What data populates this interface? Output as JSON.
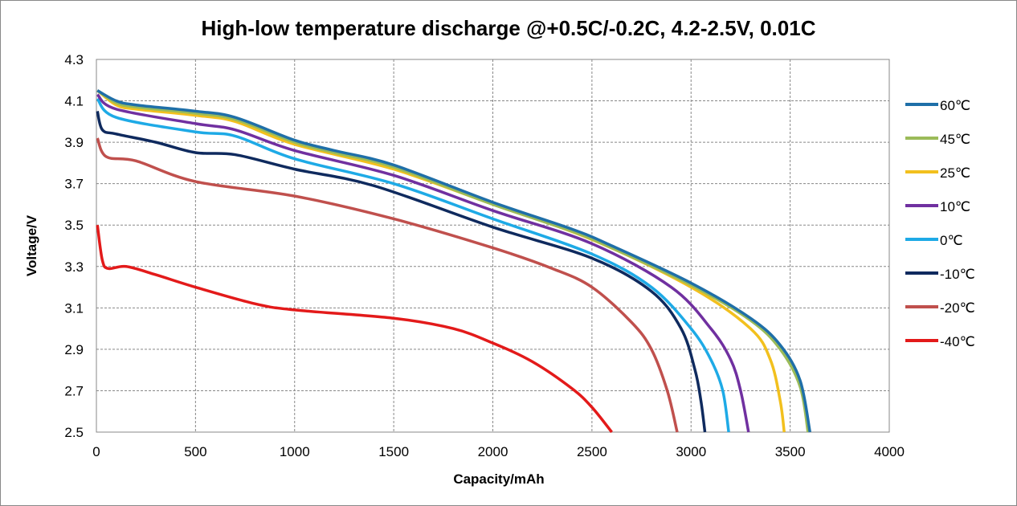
{
  "chart_data": {
    "type": "line",
    "title": "High-low temperature discharge @+0.5C/-0.2C, 4.2-2.5V, 0.01C",
    "xlabel": "Capacity/mAh",
    "ylabel": "Voltage/V",
    "xlim": [
      0,
      4000
    ],
    "ylim": [
      2.5,
      4.3
    ],
    "xticks": [
      "0",
      "500",
      "1000",
      "1500",
      "2000",
      "2500",
      "3000",
      "3500",
      "4000"
    ],
    "yticks": [
      "2.5",
      "2.7",
      "2.9",
      "3.1",
      "3.3",
      "3.5",
      "3.7",
      "3.9",
      "4.1",
      "4.3"
    ],
    "grid": true,
    "legend": "right",
    "series": [
      {
        "name": "60℃",
        "color": "#1f6fa8",
        "points": [
          [
            5,
            4.15
          ],
          [
            100,
            4.1
          ],
          [
            200,
            4.08
          ],
          [
            500,
            4.05
          ],
          [
            700,
            4.02
          ],
          [
            1000,
            3.91
          ],
          [
            1200,
            3.86
          ],
          [
            1500,
            3.79
          ],
          [
            2000,
            3.61
          ],
          [
            2400,
            3.48
          ],
          [
            2600,
            3.4
          ],
          [
            3000,
            3.22
          ],
          [
            3300,
            3.05
          ],
          [
            3450,
            2.92
          ],
          [
            3550,
            2.75
          ],
          [
            3600,
            2.5
          ]
        ]
      },
      {
        "name": "45℃",
        "color": "#9bbb59",
        "points": [
          [
            5,
            4.15
          ],
          [
            100,
            4.09
          ],
          [
            200,
            4.07
          ],
          [
            500,
            4.04
          ],
          [
            700,
            4.01
          ],
          [
            1000,
            3.9
          ],
          [
            1200,
            3.85
          ],
          [
            1500,
            3.78
          ],
          [
            2000,
            3.6
          ],
          [
            2400,
            3.47
          ],
          [
            2600,
            3.39
          ],
          [
            3000,
            3.21
          ],
          [
            3300,
            3.04
          ],
          [
            3450,
            2.9
          ],
          [
            3550,
            2.72
          ],
          [
            3590,
            2.5
          ]
        ]
      },
      {
        "name": "25℃",
        "color": "#f2c01e",
        "points": [
          [
            5,
            4.15
          ],
          [
            100,
            4.08
          ],
          [
            200,
            4.06
          ],
          [
            500,
            4.03
          ],
          [
            700,
            4.0
          ],
          [
            1000,
            3.89
          ],
          [
            1500,
            3.77
          ],
          [
            2000,
            3.6
          ],
          [
            2500,
            3.43
          ],
          [
            3000,
            3.2
          ],
          [
            3300,
            3.0
          ],
          [
            3400,
            2.85
          ],
          [
            3450,
            2.65
          ],
          [
            3470,
            2.5
          ]
        ]
      },
      {
        "name": "10℃",
        "color": "#7030a0",
        "points": [
          [
            5,
            4.13
          ],
          [
            100,
            4.06
          ],
          [
            500,
            3.99
          ],
          [
            700,
            3.96
          ],
          [
            1000,
            3.86
          ],
          [
            1500,
            3.74
          ],
          [
            2000,
            3.57
          ],
          [
            2500,
            3.41
          ],
          [
            2900,
            3.2
          ],
          [
            3100,
            3.0
          ],
          [
            3200,
            2.85
          ],
          [
            3250,
            2.7
          ],
          [
            3290,
            2.5
          ]
        ]
      },
      {
        "name": "0℃",
        "color": "#1eaae6",
        "points": [
          [
            5,
            4.11
          ],
          [
            100,
            4.02
          ],
          [
            500,
            3.95
          ],
          [
            700,
            3.93
          ],
          [
            1000,
            3.82
          ],
          [
            1500,
            3.7
          ],
          [
            2000,
            3.53
          ],
          [
            2500,
            3.36
          ],
          [
            2800,
            3.2
          ],
          [
            3000,
            3.0
          ],
          [
            3100,
            2.85
          ],
          [
            3160,
            2.7
          ],
          [
            3190,
            2.5
          ]
        ]
      },
      {
        "name": "-10℃",
        "color": "#0f2a5e",
        "points": [
          [
            5,
            4.05
          ],
          [
            30,
            3.96
          ],
          [
            100,
            3.94
          ],
          [
            300,
            3.9
          ],
          [
            500,
            3.85
          ],
          [
            700,
            3.84
          ],
          [
            1000,
            3.77
          ],
          [
            1400,
            3.69
          ],
          [
            2000,
            3.49
          ],
          [
            2500,
            3.34
          ],
          [
            2800,
            3.18
          ],
          [
            2950,
            3.0
          ],
          [
            3020,
            2.8
          ],
          [
            3050,
            2.65
          ],
          [
            3070,
            2.5
          ]
        ]
      },
      {
        "name": "-20℃",
        "color": "#c0504d",
        "points": [
          [
            5,
            3.92
          ],
          [
            50,
            3.83
          ],
          [
            200,
            3.81
          ],
          [
            500,
            3.71
          ],
          [
            1000,
            3.64
          ],
          [
            1500,
            3.53
          ],
          [
            2000,
            3.39
          ],
          [
            2300,
            3.29
          ],
          [
            2500,
            3.2
          ],
          [
            2700,
            3.03
          ],
          [
            2800,
            2.9
          ],
          [
            2880,
            2.7
          ],
          [
            2930,
            2.5
          ]
        ]
      },
      {
        "name": "-40℃",
        "color": "#e31a1a",
        "points": [
          [
            5,
            3.5
          ],
          [
            30,
            3.33
          ],
          [
            60,
            3.29
          ],
          [
            150,
            3.3
          ],
          [
            300,
            3.26
          ],
          [
            500,
            3.2
          ],
          [
            800,
            3.12
          ],
          [
            1000,
            3.09
          ],
          [
            1500,
            3.05
          ],
          [
            1800,
            3.0
          ],
          [
            2000,
            2.93
          ],
          [
            2200,
            2.84
          ],
          [
            2400,
            2.71
          ],
          [
            2500,
            2.62
          ],
          [
            2600,
            2.5
          ]
        ]
      }
    ]
  }
}
